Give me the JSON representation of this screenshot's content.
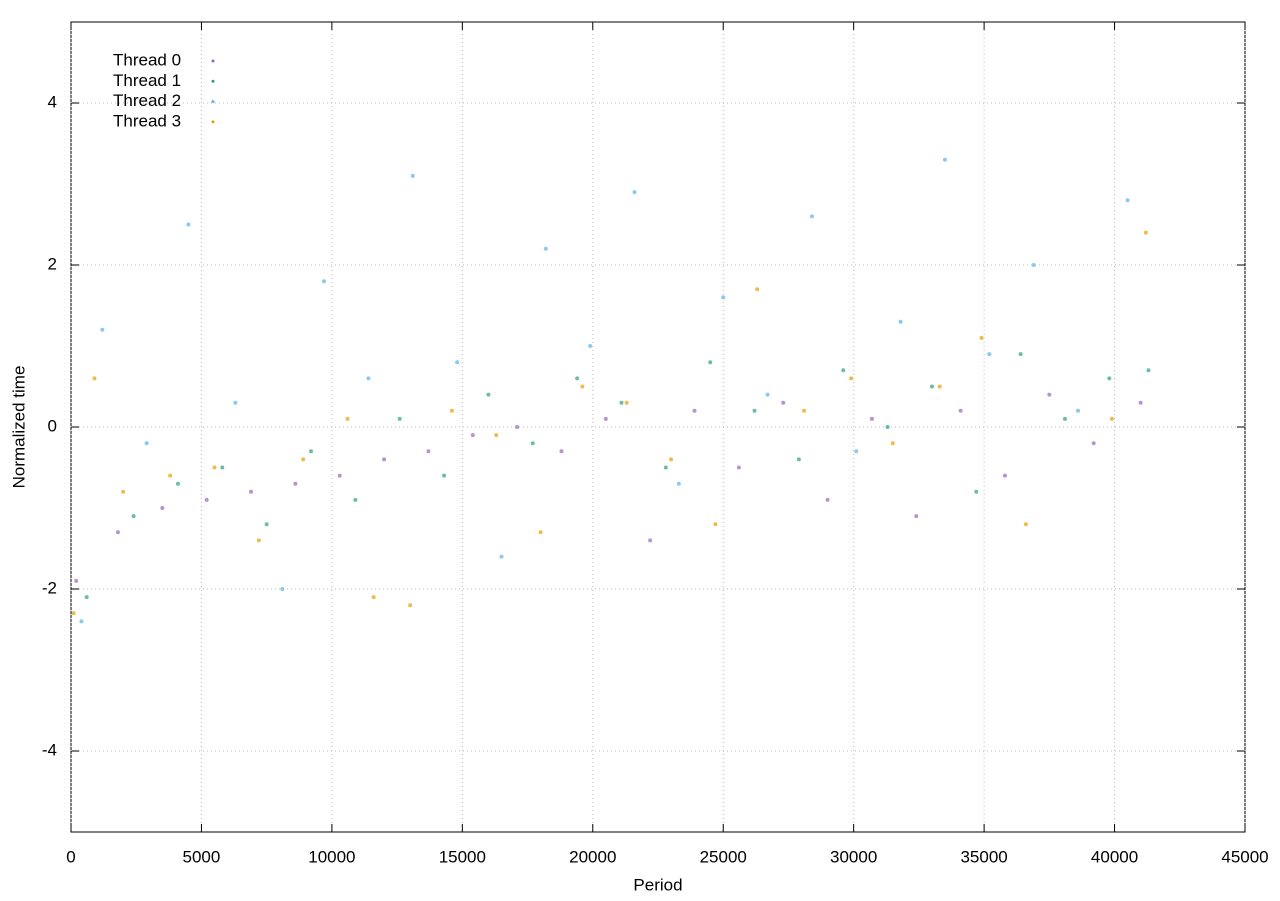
{
  "chart_data": {
    "type": "scatter",
    "x_label": "Period",
    "y_label": "Normalized time",
    "xlim": [
      0,
      45000
    ],
    "xticks": [
      0,
      5000,
      10000,
      15000,
      20000,
      25000,
      30000,
      35000,
      40000,
      45000
    ],
    "ylim": [
      -5,
      5
    ],
    "yticks": [
      -4,
      -2,
      0,
      2,
      4
    ],
    "grid": true,
    "legend": "top-left",
    "series": [
      {
        "name": "Thread 0",
        "color": "#9467bd",
        "x": [
          200,
          1800,
          3500,
          5200,
          6900,
          8600,
          10300,
          12000,
          13700,
          15400,
          17100,
          18800,
          20500,
          22200,
          23900,
          25600,
          27300,
          29000,
          30700,
          32400,
          34100,
          35800,
          37500,
          39200,
          41000
        ],
        "values": [
          -1.9,
          -1.3,
          -1.0,
          -0.9,
          -0.8,
          -0.7,
          -0.6,
          -0.4,
          -0.3,
          -0.1,
          0.0,
          -0.3,
          0.1,
          -1.4,
          0.2,
          -0.5,
          0.3,
          -0.9,
          0.1,
          -1.1,
          0.2,
          -0.6,
          0.4,
          -0.2,
          0.3
        ]
      },
      {
        "name": "Thread 1",
        "color": "#2ca089",
        "x": [
          600,
          2400,
          4100,
          5800,
          7500,
          9200,
          10900,
          12600,
          14300,
          16000,
          17700,
          19400,
          21100,
          22800,
          24500,
          26200,
          27900,
          29600,
          31300,
          33000,
          34700,
          36400,
          38100,
          39800,
          41300
        ],
        "values": [
          -2.1,
          -1.1,
          -0.7,
          -0.5,
          -1.2,
          -0.3,
          -0.9,
          0.1,
          -0.6,
          0.4,
          -0.2,
          0.6,
          0.3,
          -0.5,
          0.8,
          0.2,
          -0.4,
          0.7,
          0.0,
          0.5,
          -0.8,
          0.9,
          0.1,
          0.6,
          0.7
        ]
      },
      {
        "name": "Thread 2",
        "color": "#56b4e9",
        "x": [
          400,
          1200,
          2900,
          4500,
          6300,
          8100,
          9700,
          11400,
          13100,
          14800,
          16500,
          18200,
          19900,
          21600,
          23300,
          25000,
          26700,
          28400,
          30100,
          31800,
          33500,
          35200,
          36900,
          38600,
          40500
        ],
        "values": [
          -2.4,
          1.2,
          -0.2,
          2.5,
          0.3,
          -2.0,
          1.8,
          0.6,
          3.1,
          0.8,
          -1.6,
          2.2,
          1.0,
          2.9,
          -0.7,
          1.6,
          0.4,
          2.6,
          -0.3,
          1.3,
          3.3,
          0.9,
          2.0,
          0.2,
          2.8
        ]
      },
      {
        "name": "Thread 3",
        "color": "#e69f00",
        "x": [
          100,
          900,
          2000,
          3800,
          5500,
          7200,
          8900,
          10600,
          11600,
          13000,
          14600,
          16300,
          18000,
          19600,
          21300,
          23000,
          24700,
          26300,
          28100,
          29900,
          31500,
          33300,
          34900,
          36600,
          39900,
          41200
        ],
        "values": [
          -2.3,
          0.6,
          -0.8,
          -0.6,
          -0.5,
          -1.4,
          -0.4,
          0.1,
          -2.1,
          -2.2,
          0.2,
          -0.1,
          -1.3,
          0.5,
          0.3,
          -0.4,
          -1.2,
          1.7,
          0.2,
          0.6,
          -0.2,
          0.5,
          1.1,
          -1.2,
          0.1,
          2.4
        ]
      }
    ]
  }
}
